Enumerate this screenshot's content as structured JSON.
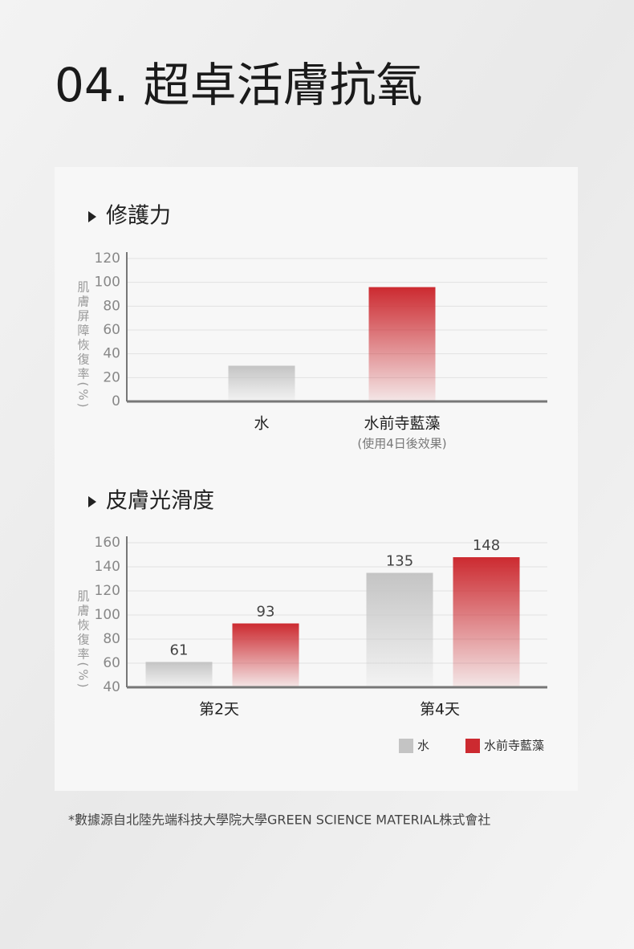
{
  "header": {
    "title": "04. 超卓活膚抗氧"
  },
  "chart_data": [
    {
      "type": "bar",
      "title": "修護力",
      "y_label": "肌膚屏障恢復率(%)",
      "categories": [
        "水",
        "水前寺藍藻"
      ],
      "note": "(使用4日後效果)",
      "values": [
        30,
        96
      ],
      "colors": [
        "#c4c4c4",
        "#cc2a30"
      ],
      "ylim": [
        0,
        120
      ],
      "yticks": [
        0,
        20,
        40,
        60,
        80,
        100,
        120
      ],
      "grid": true
    },
    {
      "type": "bar",
      "title": "皮膚光滑度",
      "y_label": "肌膚恢復率(%)",
      "categories": [
        "第2天",
        "第4天"
      ],
      "series": [
        {
          "name": "水",
          "color": "#c4c4c4",
          "values": [
            61,
            135
          ]
        },
        {
          "name": "水前寺藍藻",
          "color": "#cc2a30",
          "values": [
            93,
            148
          ]
        }
      ],
      "ylim": [
        40,
        160
      ],
      "yticks": [
        40,
        60,
        80,
        100,
        120,
        140,
        160
      ],
      "grid": true,
      "legend": "bottom-right"
    }
  ],
  "footnote": "*數據源自北陸先端科技大學院大學GREEN SCIENCE MATERIAL株式會社"
}
